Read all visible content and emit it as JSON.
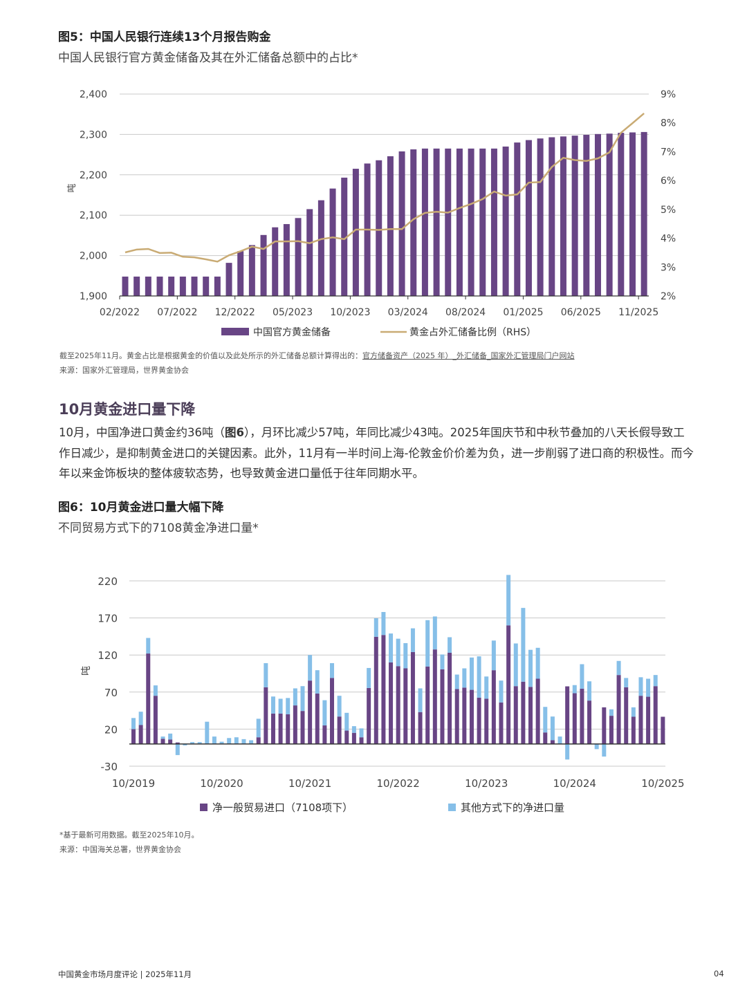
{
  "figure5": {
    "title": "图5：中国人民银行连续13个月报告购金",
    "subtitle": "中国人民银行官方黄金储备及其在外汇储备总额中的占比*",
    "note_prefix": "截至2025年11月。黄金占比是根据黄金的价值以及此处所示的外汇储备总额计算得出的：",
    "note_link": "官方储备资产（2025 年）_外汇储备_国家外汇管理局门户网站",
    "source": "来源：国家外汇管理局，世界黄金协会"
  },
  "section": {
    "heading": "10月黄金进口量下降",
    "para_part1": "10月，中国净进口黄金约36吨（",
    "para_bold": "图6",
    "para_part2": "），月环比减少57吨，年同比减少43吨。2025年国庆节和中秋节叠加的八天长假导致工作日减少，是抑制黄金进口的关键因素。此外，11月有一半时间上海-伦敦金价价差为负，进一步削弱了进口商的积极性。而今年以来金饰板块的整体疲软态势，也导致黄金进口量低于往年同期水平。"
  },
  "figure6": {
    "title": "图6：10月黄金进口量大幅下降",
    "subtitle": "不同贸易方式下的7108黄金净进口量*",
    "note": "*基于最新可用数据。截至2025年10月。",
    "source": "来源：中国海关总署，世界黄金协会"
  },
  "footer": {
    "left": "中国黄金市场月度评论 | 2025年11月",
    "page": "04"
  },
  "chart_data": [
    {
      "type": "bar+line",
      "ylabel": "吨",
      "ylim": [
        1900,
        2400
      ],
      "yticks": [
        "1,900",
        "2,000",
        "2,100",
        "2,200",
        "2,300",
        "2,400"
      ],
      "y2lim": [
        2,
        9
      ],
      "y2ticks": [
        "2%",
        "3%",
        "4%",
        "5%",
        "6%",
        "7%",
        "8%",
        "9%"
      ],
      "xticks": [
        "02/2022",
        "07/2022",
        "12/2022",
        "05/2023",
        "10/2023",
        "03/2024",
        "08/2024",
        "01/2025",
        "06/2025",
        "11/2025"
      ],
      "grid": true,
      "legend": "bottom",
      "colors": {
        "bar": "#684585",
        "line": "#c9ab74"
      },
      "series": [
        {
          "name": "中国官方黄金储备",
          "type": "bar",
          "axis": "left",
          "values": [
            1948,
            1948,
            1948,
            1948,
            1948,
            1948,
            1948,
            1948,
            1948,
            1982,
            2011,
            2026,
            2051,
            2070,
            2078,
            2093,
            2115,
            2137,
            2166,
            2193,
            2215,
            2228,
            2236,
            2246,
            2258,
            2263,
            2265,
            2265,
            2265,
            2265,
            2265,
            2265,
            2265,
            2270,
            2280,
            2286,
            2290,
            2293,
            2295,
            2297,
            2299,
            2301,
            2302,
            2304,
            2305,
            2306
          ]
        },
        {
          "name": "黄金占外汇储备比例（RHS）",
          "type": "line",
          "axis": "right",
          "values": [
            3.51,
            3.61,
            3.63,
            3.49,
            3.5,
            3.36,
            3.34,
            3.27,
            3.19,
            3.41,
            3.55,
            3.71,
            3.63,
            3.89,
            3.89,
            3.9,
            3.83,
            3.97,
            4.03,
            3.97,
            4.3,
            4.3,
            4.29,
            4.32,
            4.32,
            4.66,
            4.88,
            4.92,
            4.89,
            5.05,
            5.19,
            5.36,
            5.62,
            5.48,
            5.52,
            5.93,
            5.95,
            6.47,
            6.79,
            6.71,
            6.68,
            6.77,
            6.98,
            7.66,
            7.99,
            8.33
          ]
        }
      ]
    },
    {
      "type": "stacked-bar",
      "ylabel": "吨",
      "ylim": [
        -30,
        220
      ],
      "yticks": [
        "-30",
        "20",
        "70",
        "120",
        "170",
        "220"
      ],
      "xticks": [
        "10/2019",
        "10/2020",
        "10/2021",
        "10/2022",
        "10/2023",
        "10/2024",
        "10/2025"
      ],
      "grid": true,
      "legend": "bottom",
      "colors": {
        "general": "#684585",
        "other": "#86bfe8"
      },
      "series": [
        {
          "name": "净一般贸易进口（7108项下）",
          "values": [
            20,
            25.5,
            122,
            65,
            7,
            6,
            2,
            0,
            0,
            0,
            0,
            0,
            0,
            0,
            0,
            0,
            0,
            9,
            76.5,
            41,
            41,
            40,
            52,
            44.5,
            85.5,
            68,
            25,
            89,
            37,
            18,
            15,
            9,
            75.5,
            144.6,
            147,
            110,
            105,
            102,
            124,
            43,
            104.5,
            127.5,
            100.7,
            123,
            74,
            76,
            73,
            62.5,
            61,
            99.5,
            56,
            160,
            78,
            84,
            77,
            88,
            15.5,
            5,
            0,
            77.7,
            68.4,
            74.6,
            58.5,
            0,
            49.4,
            38,
            93,
            76.5,
            36.7,
            65,
            63.7,
            78,
            36.7
          ]
        },
        {
          "name": "其他方式下的净进口量",
          "values": [
            15,
            18,
            21,
            14,
            3,
            8,
            -15,
            -2,
            2.5,
            2.5,
            30,
            10,
            3,
            8,
            9,
            6.5,
            5,
            25,
            32.5,
            23,
            20,
            22,
            23,
            33.5,
            34.5,
            31.5,
            34,
            20,
            28,
            24,
            9,
            12,
            27,
            25,
            31,
            39,
            37,
            34,
            32,
            32,
            62.5,
            44.5,
            20,
            21,
            19.6,
            26,
            43.6,
            55.7,
            30,
            40,
            29.5,
            68,
            57.6,
            99.5,
            50,
            41.7,
            34.5,
            32,
            10,
            -21,
            11,
            33,
            26,
            -7,
            -17,
            8.7,
            19,
            12.5,
            12.7,
            25,
            24.3,
            15,
            0
          ]
        }
      ]
    }
  ]
}
